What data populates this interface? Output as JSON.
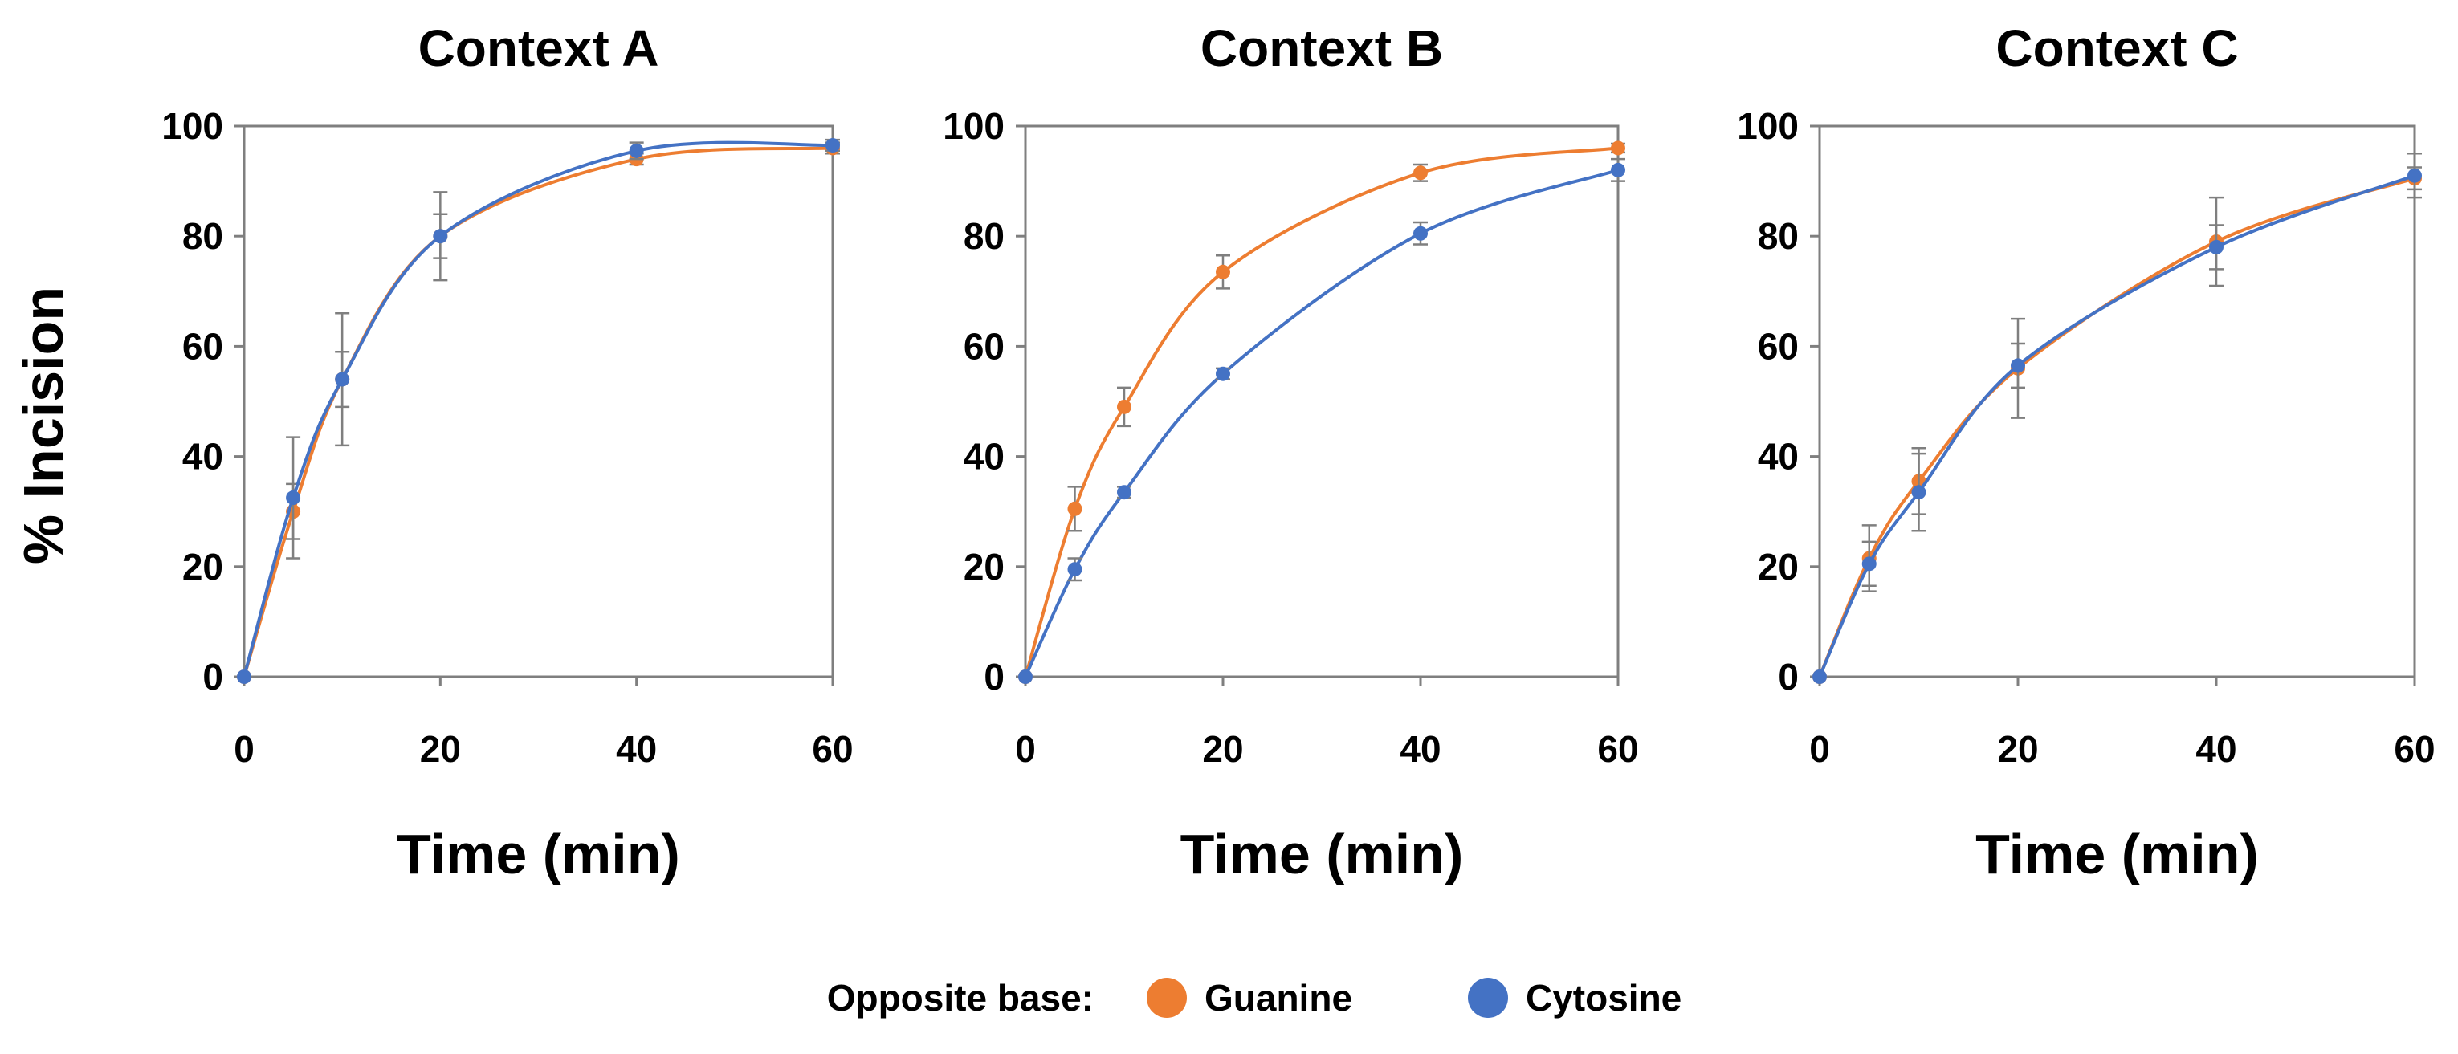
{
  "y_axis_label": "% Incision",
  "legend": {
    "title": "Opposite base:",
    "entries": [
      {
        "name": "Guanine",
        "color": "#ED7D31"
      },
      {
        "name": "Cytosine",
        "color": "#4472C4"
      }
    ]
  },
  "chart_data": [
    {
      "type": "line",
      "title": "Context A",
      "xlabel": "Time (min)",
      "ylabel": "% Incision",
      "xlim": [
        0,
        60
      ],
      "ylim": [
        0,
        100
      ],
      "xticks": [
        0,
        20,
        40,
        60
      ],
      "yticks": [
        0,
        20,
        40,
        60,
        80,
        100
      ],
      "x": [
        0,
        5,
        10,
        20,
        40,
        60
      ],
      "series": [
        {
          "name": "Guanine",
          "color": "#ED7D31",
          "values": [
            0,
            30,
            54,
            80,
            94,
            96
          ],
          "errors": [
            0,
            5,
            12,
            8,
            1,
            1
          ]
        },
        {
          "name": "Cytosine",
          "color": "#4472C4",
          "values": [
            0,
            32.5,
            54,
            80,
            95.5,
            96.5
          ],
          "errors": [
            0,
            11,
            5,
            4,
            1.5,
            1
          ]
        }
      ]
    },
    {
      "type": "line",
      "title": "Context B",
      "xlabel": "Time (min)",
      "ylabel": "% Incision",
      "xlim": [
        0,
        60
      ],
      "ylim": [
        0,
        100
      ],
      "xticks": [
        0,
        20,
        40,
        60
      ],
      "yticks": [
        0,
        20,
        40,
        60,
        80,
        100
      ],
      "x": [
        0,
        5,
        10,
        20,
        40,
        60
      ],
      "series": [
        {
          "name": "Guanine",
          "color": "#ED7D31",
          "values": [
            0,
            30.5,
            49,
            73.5,
            91.5,
            96
          ],
          "errors": [
            0,
            4,
            3.5,
            3,
            1.5,
            0.8
          ]
        },
        {
          "name": "Cytosine",
          "color": "#4472C4",
          "values": [
            0,
            19.5,
            33.5,
            55,
            80.5,
            92
          ],
          "errors": [
            0,
            2,
            1,
            1,
            2,
            2
          ]
        }
      ]
    },
    {
      "type": "line",
      "title": "Context C",
      "xlabel": "Time (min)",
      "ylabel": "% Incision",
      "xlim": [
        0,
        60
      ],
      "ylim": [
        0,
        100
      ],
      "xticks": [
        0,
        20,
        40,
        60
      ],
      "yticks": [
        0,
        20,
        40,
        60,
        80,
        100
      ],
      "x": [
        0,
        5,
        10,
        20,
        40,
        60
      ],
      "series": [
        {
          "name": "Guanine",
          "color": "#ED7D31",
          "values": [
            0,
            21.5,
            35.5,
            56,
            79,
            90.5
          ],
          "errors": [
            0,
            6,
            6,
            9,
            8,
            2
          ]
        },
        {
          "name": "Cytosine",
          "color": "#4472C4",
          "values": [
            0,
            20.5,
            33.5,
            56.5,
            78,
            91
          ],
          "errors": [
            0,
            4,
            7,
            4,
            4,
            4
          ]
        }
      ]
    }
  ]
}
